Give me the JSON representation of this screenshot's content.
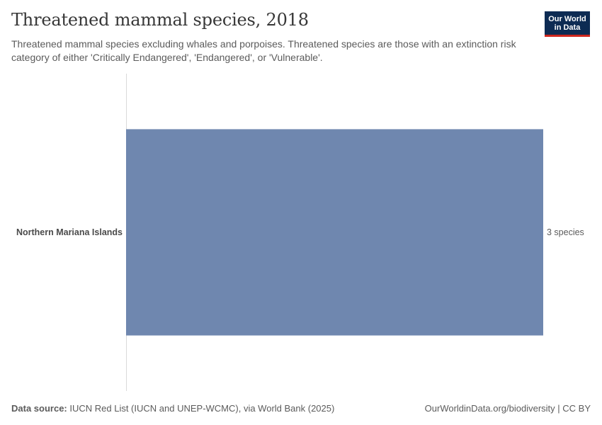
{
  "header": {
    "title": "Threatened mammal species, 2018",
    "subtitle": "Threatened mammal species excluding whales and porpoises. Threatened species are those with an extinction risk category of either 'Critically Endangered', 'Endangered', or 'Vulnerable'."
  },
  "logo": {
    "line1": "Our World",
    "line2": "in Data",
    "bg_color": "#0d2b53",
    "accent_color": "#ce261e"
  },
  "chart_data": {
    "type": "bar",
    "orientation": "horizontal",
    "title": "Threatened mammal species, 2018",
    "categories": [
      "Northern Mariana Islands"
    ],
    "values": [
      3
    ],
    "value_labels": [
      "3 species"
    ],
    "xlim": [
      0,
      3
    ],
    "grid": false,
    "bar_color": "#6f87af"
  },
  "footer": {
    "source_label": "Data source:",
    "source_text": " IUCN Red List (IUCN and UNEP-WCMC), via World Bank (2025)",
    "right_text": "OurWorldinData.org/biodiversity | CC BY"
  }
}
